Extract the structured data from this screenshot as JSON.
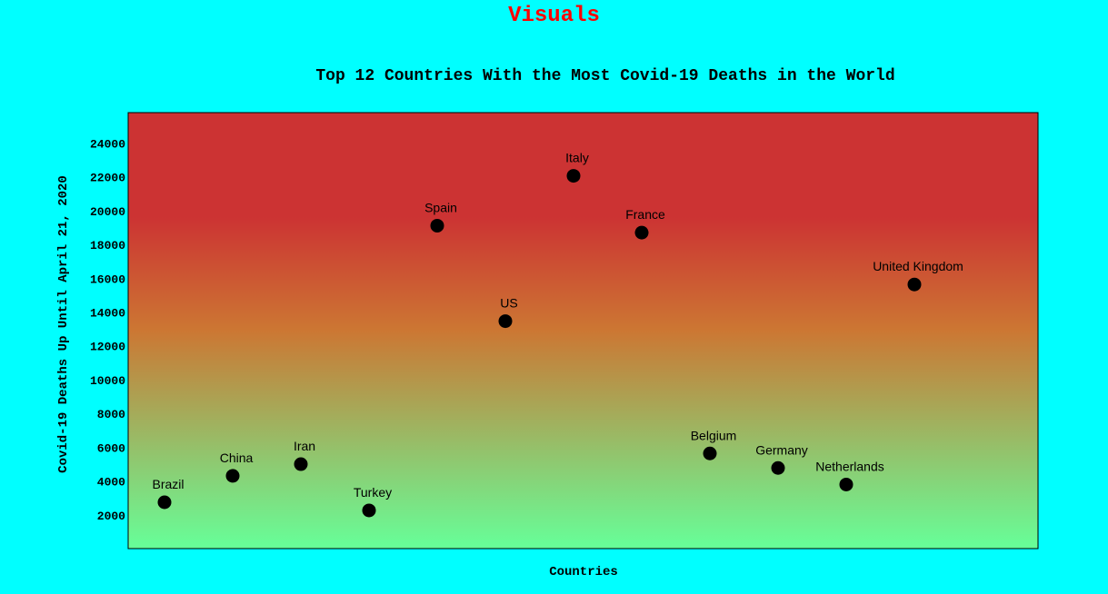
{
  "page": {
    "heading": "Visuals"
  },
  "chart_data": {
    "type": "scatter",
    "title": "Top 12 Countries With the Most Covid-19 Deaths in the World",
    "xlabel": "Countries",
    "ylabel": "Covid-19 Deaths Up Until April 21, 2020",
    "ylim": [
      0,
      25800
    ],
    "yticks": [
      2000,
      4000,
      6000,
      8000,
      10000,
      12000,
      14000,
      16000,
      18000,
      20000,
      22000,
      24000
    ],
    "grid": false,
    "points": [
      {
        "country": "Brazil",
        "deaths": 2741
      },
      {
        "country": "China",
        "deaths": 4305
      },
      {
        "country": "Iran",
        "deaths": 4997
      },
      {
        "country": "Turkey",
        "deaths": 2259
      },
      {
        "country": "Spain",
        "deaths": 19110
      },
      {
        "country": "US",
        "deaths": 13460
      },
      {
        "country": "Italy",
        "deaths": 22060
      },
      {
        "country": "France",
        "deaths": 18700
      },
      {
        "country": "Belgium",
        "deaths": 5630
      },
      {
        "country": "Germany",
        "deaths": 4770
      },
      {
        "country": "Netherlands",
        "deaths": 3790
      },
      {
        "country": "United Kingdom",
        "deaths": 15630
      }
    ],
    "colors": {
      "background_top": "#cc3333",
      "background_middle": "#cc7733",
      "background_bottom": "#66ff99",
      "marker": "#000000"
    }
  }
}
